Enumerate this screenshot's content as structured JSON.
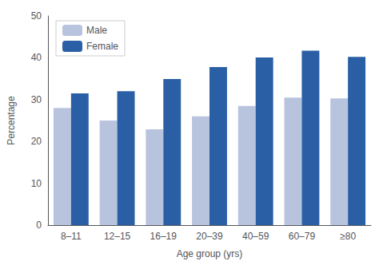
{
  "chart_data": {
    "type": "bar",
    "categories": [
      "8–11",
      "12–15",
      "16–19",
      "20–39",
      "40–59",
      "60–79",
      "≥80"
    ],
    "series": [
      {
        "name": "Male",
        "color": "#b8c4de",
        "values": [
          28.0,
          25.0,
          22.9,
          26.0,
          28.5,
          30.5,
          30.3
        ]
      },
      {
        "name": "Female",
        "color": "#2b5fa5",
        "values": [
          31.5,
          32.0,
          34.9,
          37.8,
          40.1,
          41.7,
          40.2
        ]
      }
    ],
    "xlabel": "Age group (yrs)",
    "ylabel": "Percentage",
    "ylim": [
      0,
      50
    ],
    "yticks": [
      0,
      10,
      20,
      30,
      40,
      50
    ],
    "grid": false,
    "legend": "upper left"
  }
}
